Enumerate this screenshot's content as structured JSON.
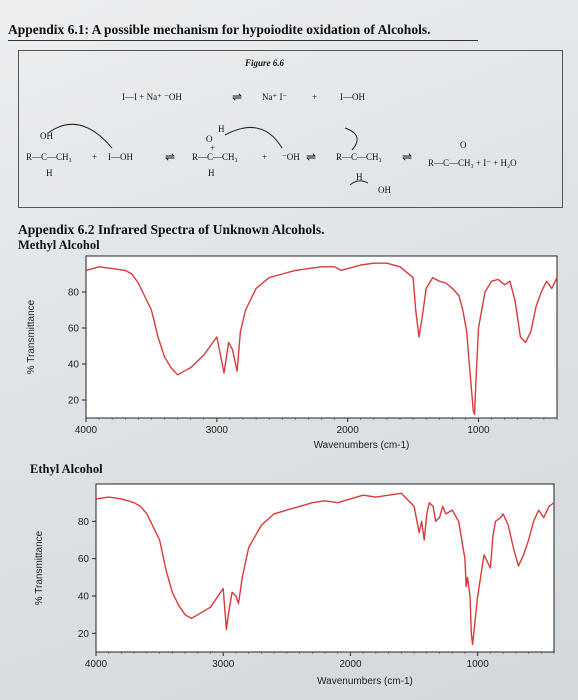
{
  "document": {
    "heading": "Appendix 6.1: A possible mechanism for hypoiodite oxidation of Alcohols.",
    "figure_label": "Figure 6.6",
    "section_title": "Appendix 6.2 Infrared Spectra of Unknown Alcohols.",
    "mechanism": {
      "line1": [
        "I—I + Na⁺ ⁻OH",
        "⇌",
        "Na⁺ I⁻",
        "+",
        "I—OH"
      ],
      "line2": {
        "reactant": "R—C—CH₃",
        "oh_top": "OH",
        "h_bottom": "H",
        "plus1": "+",
        "hypo": "I—OH",
        "eq1": "⇌",
        "inter1": "R—C—CH₃",
        "inter1_top": "H",
        "inter1_o": "O",
        "inter1_plus": "+",
        "inter1_h": "H",
        "plus2": "+",
        "hydroxide": "⁻OH",
        "eq2": "⇌",
        "inter2": "R—C—CH₃",
        "inter2_h": "H",
        "inter2_oh": "OH",
        "eq3": "⇌",
        "product": "R—C—CH₃ + I⁻ + H₂O",
        "product_o": "O"
      }
    }
  },
  "chart_data": [
    {
      "type": "line",
      "title": "Methyl Alcohol",
      "xlabel": "Wavenumbers (cm-1)",
      "ylabel": "% Transmittance",
      "xlim": [
        4000,
        400
      ],
      "ylim": [
        10,
        100
      ],
      "xticks": [
        "4000",
        "3000",
        "2000",
        "1000"
      ],
      "yticks": [
        "80",
        "60",
        "40",
        "20"
      ],
      "grid": false,
      "color": "#d93a3a",
      "series": [
        {
          "x": [
            4000,
            3900,
            3800,
            3700,
            3650,
            3600,
            3500,
            3450,
            3400,
            3350,
            3300,
            3250,
            3200,
            3100,
            3050,
            3000,
            2980,
            2945,
            2910,
            2880,
            2845,
            2820,
            2780,
            2700,
            2600,
            2500,
            2400,
            2300,
            2200,
            2100,
            2050,
            2000,
            1950,
            1900,
            1800,
            1700,
            1600,
            1500,
            1480,
            1455,
            1430,
            1400,
            1350,
            1300,
            1250,
            1200,
            1150,
            1120,
            1090,
            1070,
            1040,
            1030,
            1020,
            1000,
            950,
            900,
            850,
            800,
            760,
            720,
            680,
            640,
            600,
            560,
            520,
            480,
            440,
            400
          ],
          "y": [
            92,
            94,
            93,
            92,
            90,
            85,
            70,
            55,
            44,
            38,
            34,
            36,
            38,
            45,
            50,
            55,
            48,
            35,
            52,
            48,
            36,
            58,
            70,
            82,
            88,
            90,
            92,
            93,
            94,
            94,
            92,
            93,
            94,
            95,
            96,
            96,
            94,
            88,
            70,
            55,
            66,
            82,
            88,
            86,
            85,
            82,
            78,
            70,
            58,
            40,
            14,
            12,
            30,
            60,
            80,
            86,
            87,
            84,
            86,
            75,
            55,
            52,
            58,
            72,
            80,
            86,
            82,
            88
          ]
        }
      ]
    },
    {
      "type": "line",
      "title": "Ethyl Alcohol",
      "xlabel": "Wavenumbers (cm-1)",
      "ylabel": "% Transmittance",
      "xlim": [
        4000,
        400
      ],
      "ylim": [
        10,
        100
      ],
      "xticks": [
        "4000",
        "3000",
        "2000",
        "1000"
      ],
      "yticks": [
        "80",
        "60",
        "40",
        "20"
      ],
      "grid": false,
      "color": "#d93a3a",
      "series": [
        {
          "x": [
            4000,
            3900,
            3800,
            3700,
            3650,
            3600,
            3500,
            3450,
            3400,
            3350,
            3300,
            3250,
            3200,
            3100,
            3000,
            2975,
            2960,
            2930,
            2900,
            2880,
            2850,
            2800,
            2700,
            2600,
            2500,
            2400,
            2300,
            2200,
            2100,
            2000,
            1900,
            1800,
            1700,
            1600,
            1500,
            1460,
            1440,
            1420,
            1400,
            1380,
            1350,
            1330,
            1300,
            1275,
            1250,
            1200,
            1150,
            1100,
            1090,
            1080,
            1060,
            1050,
            1040,
            1000,
            950,
            900,
            880,
            860,
            820,
            800,
            760,
            720,
            680,
            640,
            600,
            560,
            520,
            480,
            440,
            400
          ],
          "y": [
            92,
            93,
            92,
            90,
            88,
            84,
            70,
            54,
            42,
            35,
            30,
            28,
            30,
            34,
            44,
            22,
            30,
            42,
            40,
            36,
            50,
            66,
            78,
            84,
            86,
            88,
            90,
            91,
            90,
            92,
            94,
            93,
            94,
            95,
            88,
            74,
            80,
            70,
            84,
            90,
            88,
            80,
            82,
            88,
            84,
            86,
            80,
            60,
            45,
            50,
            40,
            20,
            14,
            40,
            62,
            55,
            72,
            80,
            82,
            84,
            78,
            66,
            56,
            62,
            70,
            80,
            86,
            82,
            88,
            90
          ]
        }
      ]
    }
  ]
}
